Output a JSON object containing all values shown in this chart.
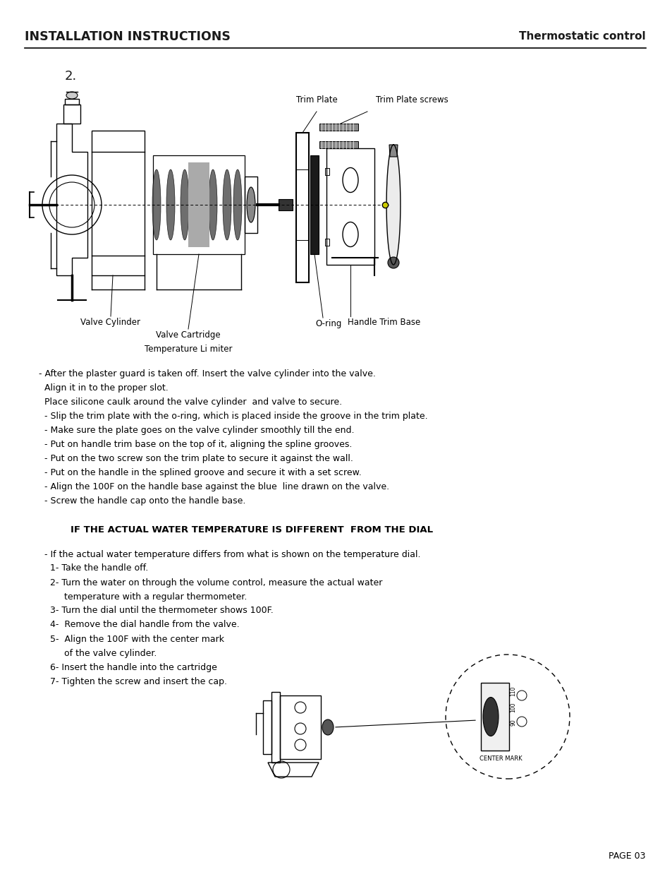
{
  "title_left": "INSTALLATION INSTRUCTIONS",
  "title_right": "Thermostatic control",
  "section_number": "2.",
  "bg_color": "#ffffff",
  "text_color": "#000000",
  "instructions_1": [
    "- After the plaster guard is taken off. Insert the valve cylinder into the valve.",
    "  Align it in to the proper slot.",
    "  Place silicone caulk around the valve cylinder  and valve to secure.",
    "  - Slip the trim plate with the o-ring, which is placed inside the groove in the trim plate.",
    "  - Make sure the plate goes on the valve cylinder smoothly till the end.",
    "  - Put on handle trim base on the top of it, aligning the spline grooves.",
    "  - Put on the two screw son the trim plate to secure it against the wall.",
    "  - Put on the handle in the splined groove and secure it with a set screw.",
    "  - Align the 100F on the handle base against the blue  line drawn on the valve.",
    "  - Screw the handle cap onto the handle base."
  ],
  "section2_title": "IF THE ACTUAL WATER TEMPERATURE IS DIFFERENT  FROM THE DIAL",
  "instructions_2": [
    "  - If the actual water temperature differs from what is shown on the temperature dial.",
    "    1- Take the handle off.",
    "    2- Turn the water on through the volume control, measure the actual water",
    "         temperature with a regular thermometer.",
    "    3- Turn the dial until the thermometer shows 100F.",
    "    4-  Remove the dial handle from the valve.",
    "    5-  Align the 100F with the center mark",
    "         of the valve cylinder.",
    "    6- Insert the handle into the cartridge",
    "    7- Tighten the screw and insert the cap."
  ],
  "page_number": "PAGE 03",
  "diagram_label_trim_plate": "Trim Plate",
  "diagram_label_trim_screws": "Trim Plate screws",
  "diagram_label_valve_cyl": "Valve Cylinder",
  "diagram_label_valve_cart": "Valve Cartridge",
  "diagram_label_oring": "O-ring",
  "diagram_label_temp_lim": "Temperature Li miter",
  "diagram_label_handle_base": "Handle Trim Base",
  "center_mark_label": "CENTER MARK"
}
